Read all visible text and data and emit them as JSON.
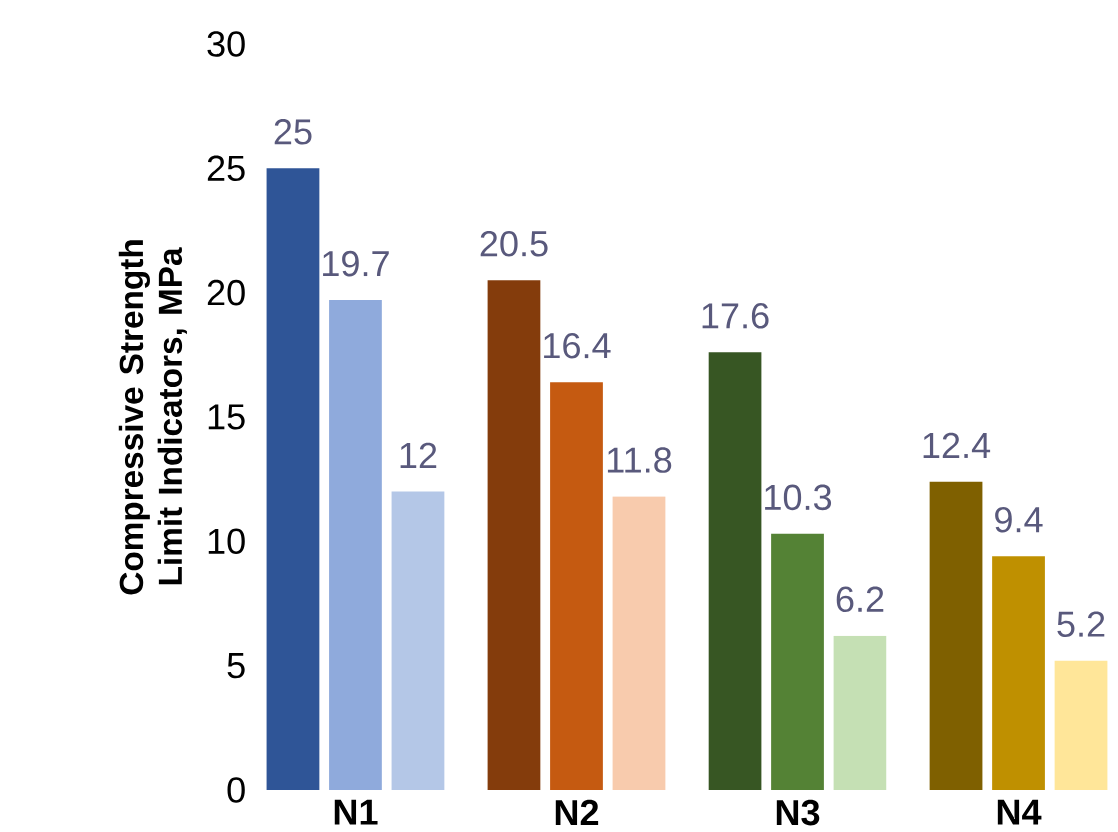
{
  "chart_data": {
    "type": "bar",
    "ylabel": "Compressive Strength Limit Indicators, MPa",
    "categories": [
      "N1",
      "N2",
      "N3",
      "N4"
    ],
    "series": [
      {
        "values": [
          25,
          20.5,
          17.6,
          12.4
        ],
        "colors": [
          "#2f5597",
          "#843c0c",
          "#375623",
          "#7f6000"
        ]
      },
      {
        "values": [
          19.7,
          16.4,
          10.3,
          9.4
        ],
        "colors": [
          "#8faadc",
          "#c55a11",
          "#548235",
          "#bf9000"
        ]
      },
      {
        "values": [
          12,
          11.8,
          6.2,
          5.2
        ],
        "colors": [
          "#b4c7e7",
          "#f8cbad",
          "#c5e0b4",
          "#ffe699"
        ]
      }
    ],
    "ylim": [
      0,
      30
    ],
    "yticks": [
      0,
      5,
      10,
      15,
      20,
      25,
      30
    ],
    "data_labels": true
  }
}
